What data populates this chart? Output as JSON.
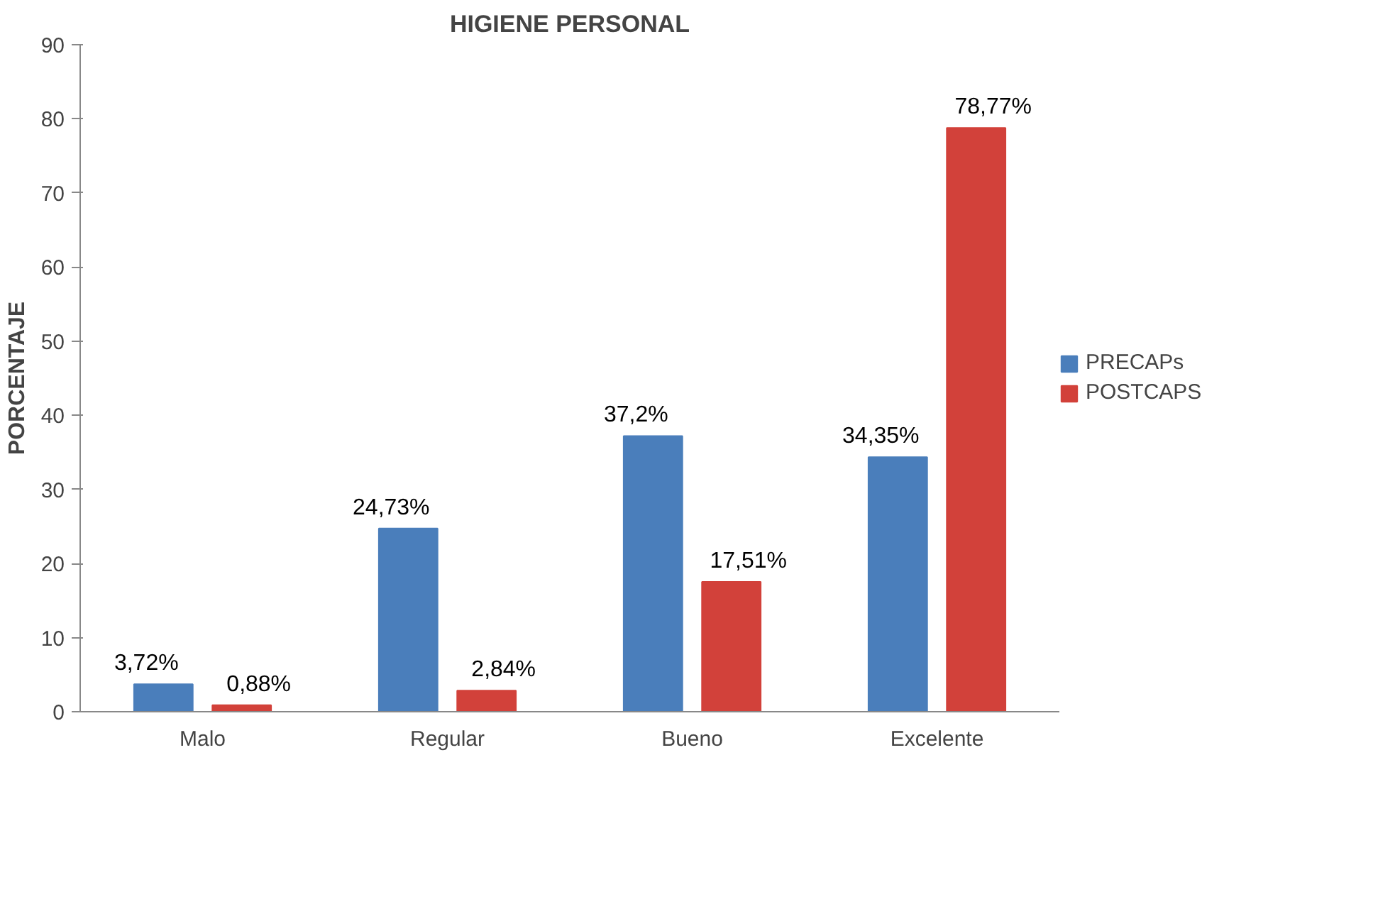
{
  "chart_data": {
    "type": "bar",
    "title": "HIGIENE PERSONAL",
    "ylabel": "PORCENTAJE",
    "categories": [
      "Malo",
      "Regular",
      "Bueno",
      "Excelente"
    ],
    "series": [
      {
        "name": "PRECAPs",
        "color": "#4a7ebb",
        "values": [
          3.72,
          24.73,
          37.2,
          34.35
        ],
        "value_labels": [
          "3,72%",
          "24,73%",
          "37,2%",
          "34,35%"
        ]
      },
      {
        "name": "POSTCAPS",
        "color": "#d2413a",
        "values": [
          0.88,
          2.84,
          17.51,
          78.77
        ],
        "value_labels": [
          "0,88%",
          "2,84%",
          "17,51%",
          "78,77%"
        ]
      }
    ],
    "ylim": [
      0,
      90
    ],
    "yticks": [
      0,
      10,
      20,
      30,
      40,
      50,
      60,
      70,
      80,
      90
    ],
    "grid": false,
    "legend": "right"
  }
}
